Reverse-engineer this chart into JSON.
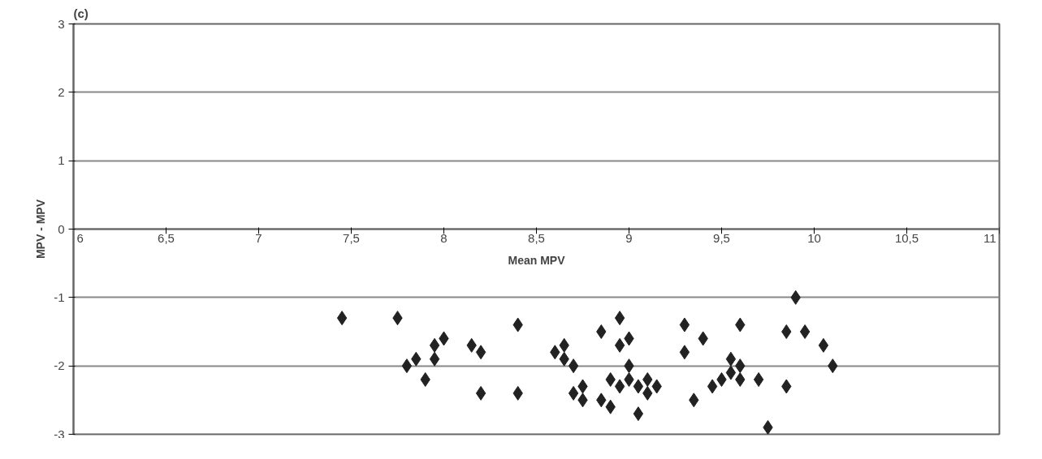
{
  "chart_data": {
    "type": "scatter",
    "title": "(c)",
    "xlabel": "Mean MPV",
    "ylabel": "MPV - MPV",
    "x": [
      7.45,
      7.75,
      7.8,
      7.85,
      7.9,
      7.95,
      7.95,
      8.0,
      8.15,
      8.2,
      8.2,
      8.4,
      8.4,
      8.6,
      8.65,
      8.65,
      8.7,
      8.7,
      8.75,
      8.75,
      8.85,
      8.85,
      8.9,
      8.9,
      8.95,
      8.95,
      8.95,
      9.0,
      9.0,
      9.0,
      9.05,
      9.05,
      9.1,
      9.1,
      9.15,
      9.3,
      9.3,
      9.35,
      9.4,
      9.45,
      9.5,
      9.55,
      9.55,
      9.6,
      9.6,
      9.6,
      9.7,
      9.75,
      9.85,
      9.85,
      9.9,
      9.95,
      10.05,
      10.1
    ],
    "series": [
      {
        "color": "#222222",
        "values": [
          -1.3,
          -1.3,
          -2.0,
          -1.9,
          -2.2,
          -1.7,
          -1.9,
          -1.6,
          -1.7,
          -1.8,
          -2.4,
          -1.4,
          -2.4,
          -1.8,
          -1.7,
          -1.9,
          -2.0,
          -2.4,
          -2.3,
          -2.5,
          -1.5,
          -2.5,
          -2.6,
          -2.2,
          -1.3,
          -1.7,
          -2.3,
          -1.6,
          -2.0,
          -2.2,
          -2.3,
          -2.7,
          -2.2,
          -2.4,
          -2.3,
          -1.4,
          -1.8,
          -2.5,
          -1.6,
          -2.3,
          -2.2,
          -1.9,
          -2.1,
          -2.0,
          -2.2,
          -1.4,
          -2.2,
          -2.9,
          -1.5,
          -2.3,
          -1.0,
          -1.5,
          -1.7,
          -2.0
        ]
      }
    ],
    "xlim": [
      6,
      11
    ],
    "ylim": [
      -3,
      3
    ],
    "xticks": [
      6,
      {
        "value": 6.5,
        "label": "6,5"
      },
      7,
      {
        "value": 7.5,
        "label": "7,5"
      },
      8,
      {
        "value": 8.5,
        "label": "8,5"
      },
      9,
      {
        "value": 9.5,
        "label": "9,5"
      },
      10,
      {
        "value": 10.5,
        "label": "10,5"
      },
      11
    ],
    "yticks": [
      -3,
      -2,
      -1,
      0,
      1,
      2,
      3
    ],
    "grid": "y",
    "marker": "diamond"
  }
}
